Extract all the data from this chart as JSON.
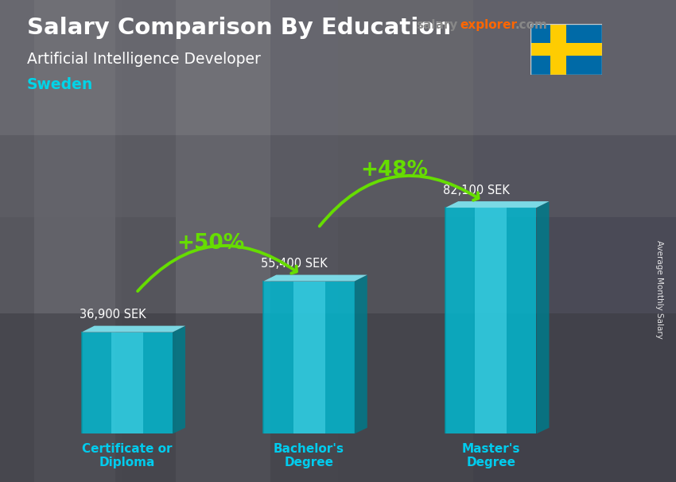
{
  "title": "Salary Comparison By Education",
  "subtitle": "Artificial Intelligence Developer",
  "country": "Sweden",
  "ylabel": "Average Monthly Salary",
  "website_part1": "salary",
  "website_part2": "explorer",
  "website_part3": ".com",
  "categories": [
    "Certificate or\nDiploma",
    "Bachelor's\nDegree",
    "Master's\nDegree"
  ],
  "values": [
    36900,
    55400,
    82100
  ],
  "value_labels": [
    "36,900 SEK",
    "55,400 SEK",
    "82,100 SEK"
  ],
  "pct_labels": [
    "+50%",
    "+48%"
  ],
  "bar_color_main": "#00bcd4",
  "bar_color_light": "#4dd9ec",
  "bar_color_dark": "#0097a7",
  "bar_color_side": "#007a8a",
  "bar_color_top_light": "#80e8f5",
  "bg_color": "#606070",
  "title_color": "#ffffff",
  "subtitle_color": "#ffffff",
  "country_color": "#00d4e8",
  "arrow_color": "#66dd00",
  "value_color": "#ffffff",
  "category_color": "#00ccee",
  "website_color1": "#888888",
  "website_color2": "#ff6600",
  "website_color3": "#888888",
  "flag_blue": "#006AA7",
  "flag_yellow": "#FECC02",
  "figsize": [
    8.5,
    6.06
  ],
  "dpi": 100,
  "bar_width": 0.5,
  "ylim": [
    0,
    105000
  ],
  "x_positions": [
    0,
    1,
    2
  ]
}
